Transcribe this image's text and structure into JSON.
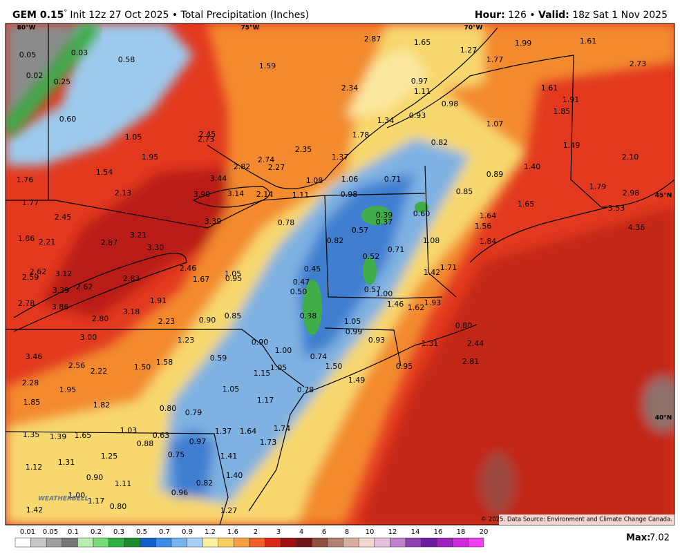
{
  "header": {
    "model": "GEM 0.15",
    "degree": "°",
    "title": "Init 12z 27 Oct 2025 • Total Precipitation (Inches)",
    "hour_label": "Hour:",
    "hour": "126",
    "separator": "•",
    "valid_label": "Valid:",
    "valid": "18z Sat 1 Nov 2025"
  },
  "map": {
    "graticule": [
      "80°W",
      "75°W",
      "70°W",
      "45°N",
      "40°N"
    ],
    "labels": [
      "0.05",
      "0.03",
      "0.02",
      "0.25",
      "0.58",
      "1.59",
      "2.87",
      "1.65",
      "1.27",
      "1.77",
      "1.99",
      "1.61",
      "2.73",
      "0.60",
      "2.34",
      "0.97",
      "1.11",
      "1.61",
      "1.91",
      "1.85",
      "0.98",
      "0.93",
      "1.34",
      "1.07",
      "1.05",
      "2.45",
      "2.73",
      "1.78",
      "0.82",
      "1.49",
      "1.95",
      "2.35",
      "1.37",
      "2.74",
      "2.82",
      "2.27",
      "1.40",
      "2.10",
      "1.54",
      "1.76",
      "3.44",
      "1.08",
      "1.06",
      "0.71",
      "0.89",
      "2.13",
      "3.90",
      "3.14",
      "2.14",
      "1.11",
      "0.98",
      "0.85",
      "1.79",
      "2.98",
      "1.65",
      "3.53",
      "1.77",
      "2.45",
      "0.78",
      "0.39",
      "0.37",
      "0.60",
      "1.64",
      "1.56",
      "4.36",
      "3.39",
      "0.57",
      "3.21",
      "1.86",
      "2.21",
      "2.87",
      "0.82",
      "1.08",
      "1.84",
      "3.30",
      "0.71",
      "0.52",
      "1.71",
      "2.46",
      "0.45",
      "1.05",
      "1.42",
      "2.62",
      "3.12",
      "2.59",
      "2.83",
      "0.95",
      "1.67",
      "0.47",
      "2.62",
      "0.57",
      "0.50",
      "1.00",
      "3.39",
      "1.91",
      "1.93",
      "1.46",
      "1.62",
      "2.78",
      "3.86",
      "3.18",
      "0.38",
      "0.85",
      "0.90",
      "2.80",
      "2.23",
      "1.05",
      "0.80",
      "0.99",
      "3.00",
      "1.23",
      "0.90",
      "0.93",
      "1.31",
      "2.44",
      "1.00",
      "0.74",
      "0.59",
      "3.46",
      "2.56",
      "1.58",
      "1.50",
      "1.05",
      "1.50",
      "0.95",
      "2.81",
      "2.22",
      "1.15",
      "1.49",
      "2.28",
      "1.95",
      "1.05",
      "0.78",
      "1.17",
      "1.85",
      "1.82",
      "0.80",
      "0.79",
      "1.03",
      "1.64",
      "1.74",
      "1.37",
      "1.35",
      "1.39",
      "1.65",
      "0.63",
      "0.97",
      "1.73",
      "0.88",
      "1.25",
      "1.31",
      "1.41",
      "0.75",
      "1.12",
      "0.90",
      "1.40",
      "1.11",
      "0.82",
      "1.00",
      "1.17",
      "0.96",
      "0.80",
      "1.42",
      "1.27"
    ],
    "logo": "WEATHERBELL",
    "copyright": "© 2025. Data Source: Environment and Climate Change Canada."
  },
  "colorbar": {
    "ticks": [
      "0.01",
      "0.05",
      "0.1",
      "0.2",
      "0.3",
      "0.5",
      "0.7",
      "0.9",
      "1.2",
      "1.6",
      "2",
      "3",
      "4",
      "6",
      "8",
      "10",
      "12",
      "14",
      "16",
      "18",
      "20"
    ]
  },
  "max": {
    "label": "Max:",
    "value": "7.02"
  }
}
